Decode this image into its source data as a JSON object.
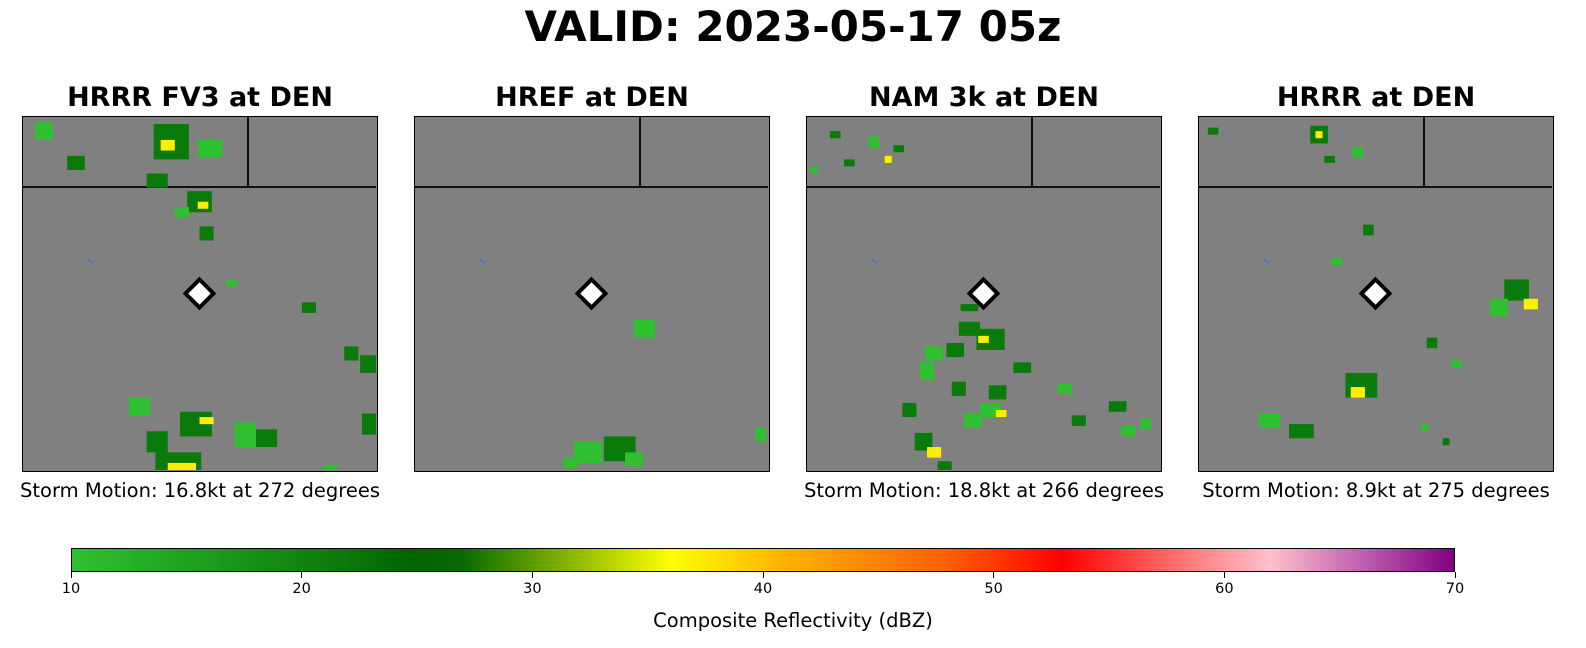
{
  "title": "VALID: 2023-05-17 05z",
  "panels": [
    {
      "title": "HRRR FV3 at DEN",
      "motion": "Storm Motion: 16.8kt at 272 degrees",
      "blobs": [
        [
          0.06,
          0.04,
          0.05,
          0.05,
          "g"
        ],
        [
          0.15,
          0.13,
          0.05,
          0.04,
          "d"
        ],
        [
          0.42,
          0.07,
          0.1,
          0.1,
          "d"
        ],
        [
          0.53,
          0.09,
          0.07,
          0.05,
          "g"
        ],
        [
          0.41,
          0.08,
          0.04,
          0.03,
          "y"
        ],
        [
          0.38,
          0.18,
          0.06,
          0.04,
          "d"
        ],
        [
          0.5,
          0.24,
          0.07,
          0.06,
          "d"
        ],
        [
          0.51,
          0.25,
          0.03,
          0.02,
          "y"
        ],
        [
          0.45,
          0.27,
          0.04,
          0.03,
          "g"
        ],
        [
          0.52,
          0.33,
          0.04,
          0.04,
          "d"
        ],
        [
          0.59,
          0.47,
          0.03,
          0.02,
          "g"
        ],
        [
          0.81,
          0.54,
          0.04,
          0.03,
          "d"
        ],
        [
          0.93,
          0.67,
          0.04,
          0.04,
          "d"
        ],
        [
          0.98,
          0.7,
          0.05,
          0.05,
          "d"
        ],
        [
          0.33,
          0.82,
          0.06,
          0.05,
          "g"
        ],
        [
          0.49,
          0.87,
          0.09,
          0.07,
          "d"
        ],
        [
          0.52,
          0.86,
          0.04,
          0.02,
          "y"
        ],
        [
          0.38,
          0.92,
          0.06,
          0.06,
          "d"
        ],
        [
          0.44,
          0.98,
          0.13,
          0.06,
          "d"
        ],
        [
          0.45,
          1.0,
          0.08,
          0.04,
          "y"
        ],
        [
          0.63,
          0.9,
          0.06,
          0.07,
          "g"
        ],
        [
          0.69,
          0.91,
          0.06,
          0.05,
          "d"
        ],
        [
          0.98,
          0.87,
          0.04,
          0.06,
          "d"
        ],
        [
          0.87,
          1.0,
          0.04,
          0.03,
          "g"
        ]
      ]
    },
    {
      "title": "HREF at DEN",
      "motion": "",
      "blobs": [
        [
          0.65,
          0.6,
          0.06,
          0.05,
          "g"
        ],
        [
          0.49,
          0.95,
          0.08,
          0.06,
          "g"
        ],
        [
          0.58,
          0.94,
          0.09,
          0.07,
          "d"
        ],
        [
          0.62,
          0.97,
          0.05,
          0.04,
          "g"
        ],
        [
          0.44,
          0.98,
          0.04,
          0.03,
          "g"
        ],
        [
          0.98,
          0.9,
          0.03,
          0.04,
          "g"
        ]
      ]
    },
    {
      "title": "NAM 3k at DEN",
      "motion": "Storm Motion: 18.8kt at 266 degrees",
      "blobs": [
        [
          0.08,
          0.05,
          0.03,
          0.02,
          "d"
        ],
        [
          0.19,
          0.07,
          0.03,
          0.03,
          "g"
        ],
        [
          0.26,
          0.09,
          0.03,
          0.02,
          "d"
        ],
        [
          0.12,
          0.13,
          0.03,
          0.02,
          "d"
        ],
        [
          0.23,
          0.12,
          0.02,
          0.02,
          "y"
        ],
        [
          0.02,
          0.15,
          0.02,
          0.02,
          "g"
        ],
        [
          0.46,
          0.54,
          0.05,
          0.02,
          "d"
        ],
        [
          0.46,
          0.6,
          0.06,
          0.04,
          "d"
        ],
        [
          0.52,
          0.63,
          0.08,
          0.06,
          "d"
        ],
        [
          0.5,
          0.63,
          0.03,
          0.02,
          "y"
        ],
        [
          0.36,
          0.67,
          0.05,
          0.04,
          "g"
        ],
        [
          0.42,
          0.66,
          0.05,
          0.04,
          "d"
        ],
        [
          0.61,
          0.71,
          0.05,
          0.03,
          "d"
        ],
        [
          0.34,
          0.72,
          0.04,
          0.05,
          "g"
        ],
        [
          0.43,
          0.77,
          0.04,
          0.04,
          "d"
        ],
        [
          0.54,
          0.78,
          0.05,
          0.04,
          "d"
        ],
        [
          0.73,
          0.77,
          0.04,
          0.03,
          "g"
        ],
        [
          0.52,
          0.83,
          0.06,
          0.04,
          "g"
        ],
        [
          0.55,
          0.84,
          0.03,
          0.02,
          "y"
        ],
        [
          0.29,
          0.83,
          0.04,
          0.04,
          "d"
        ],
        [
          0.47,
          0.86,
          0.05,
          0.04,
          "g"
        ],
        [
          0.33,
          0.92,
          0.05,
          0.05,
          "d"
        ],
        [
          0.36,
          0.95,
          0.04,
          0.03,
          "y"
        ],
        [
          0.77,
          0.86,
          0.04,
          0.03,
          "d"
        ],
        [
          0.88,
          0.82,
          0.05,
          0.03,
          "d"
        ],
        [
          0.91,
          0.89,
          0.04,
          0.03,
          "g"
        ],
        [
          0.96,
          0.87,
          0.03,
          0.03,
          "g"
        ],
        [
          0.39,
          0.99,
          0.04,
          0.03,
          "d"
        ]
      ]
    },
    {
      "title": "HRRR at DEN",
      "motion": "Storm Motion: 8.9kt at 275 degrees",
      "blobs": [
        [
          0.04,
          0.04,
          0.03,
          0.02,
          "d"
        ],
        [
          0.34,
          0.05,
          0.05,
          0.05,
          "d"
        ],
        [
          0.34,
          0.05,
          0.02,
          0.02,
          "y"
        ],
        [
          0.45,
          0.1,
          0.03,
          0.03,
          "g"
        ],
        [
          0.37,
          0.12,
          0.03,
          0.02,
          "d"
        ],
        [
          0.48,
          0.32,
          0.03,
          0.03,
          "d"
        ],
        [
          0.39,
          0.41,
          0.03,
          0.02,
          "g"
        ],
        [
          0.9,
          0.49,
          0.07,
          0.06,
          "d"
        ],
        [
          0.94,
          0.53,
          0.04,
          0.03,
          "y"
        ],
        [
          0.85,
          0.54,
          0.05,
          0.05,
          "g"
        ],
        [
          0.66,
          0.64,
          0.03,
          0.03,
          "d"
        ],
        [
          0.73,
          0.7,
          0.03,
          0.02,
          "g"
        ],
        [
          0.46,
          0.76,
          0.09,
          0.07,
          "d"
        ],
        [
          0.45,
          0.78,
          0.04,
          0.03,
          "y"
        ],
        [
          0.2,
          0.86,
          0.06,
          0.04,
          "g"
        ],
        [
          0.29,
          0.89,
          0.07,
          0.04,
          "d"
        ],
        [
          0.64,
          0.88,
          0.02,
          0.02,
          "g"
        ],
        [
          0.7,
          0.92,
          0.02,
          0.02,
          "d"
        ]
      ]
    }
  ],
  "chart_data": {
    "type": "heatmap",
    "colorbar": {
      "label": "Composite Reflectivity (dBZ)",
      "min": 10,
      "max": 70,
      "ticks": [
        "10",
        "20",
        "30",
        "40",
        "50",
        "60",
        "70"
      ]
    },
    "colors": {
      "map_bg": "#808080",
      "light_green": "#2fc12f",
      "dark_green": "#0a7a0a",
      "yellow": "#ffee00",
      "water": "#4a78c8"
    }
  }
}
